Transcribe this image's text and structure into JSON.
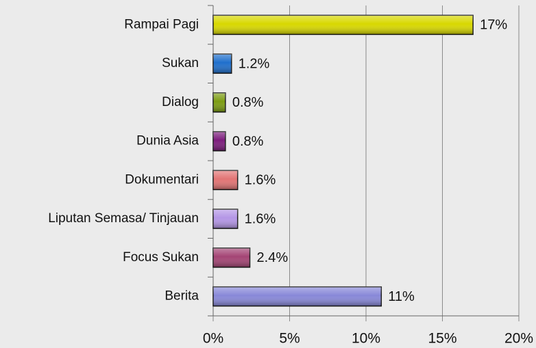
{
  "chart_data": {
    "type": "bar",
    "orientation": "horizontal",
    "categories": [
      "Rampai Pagi",
      "Sukan",
      "Dialog",
      "Dunia Asia",
      "Dokumentari",
      "Liputan Semasa/ Tinjauan",
      "Focus Sukan",
      "Berita"
    ],
    "values": [
      17,
      1.2,
      0.8,
      0.8,
      1.6,
      1.6,
      2.4,
      11
    ],
    "value_labels": [
      "17%",
      "1.2%",
      "0.8%",
      "0.8%",
      "1.6%",
      "1.6%",
      "2.4%",
      "11%"
    ],
    "colors": [
      "#d8d800",
      "#1f6fcc",
      "#7c9c12",
      "#7c1c7c",
      "#e27474",
      "#b496e6",
      "#a44474",
      "#8888d8"
    ],
    "xlim": [
      0,
      20
    ],
    "xticks": [
      {
        "value": 0,
        "label": "0%"
      },
      {
        "value": 5,
        "label": "5%"
      },
      {
        "value": 10,
        "label": "10%"
      },
      {
        "value": 15,
        "label": "15%"
      },
      {
        "value": 20,
        "label": "20%"
      }
    ],
    "grid": true
  }
}
